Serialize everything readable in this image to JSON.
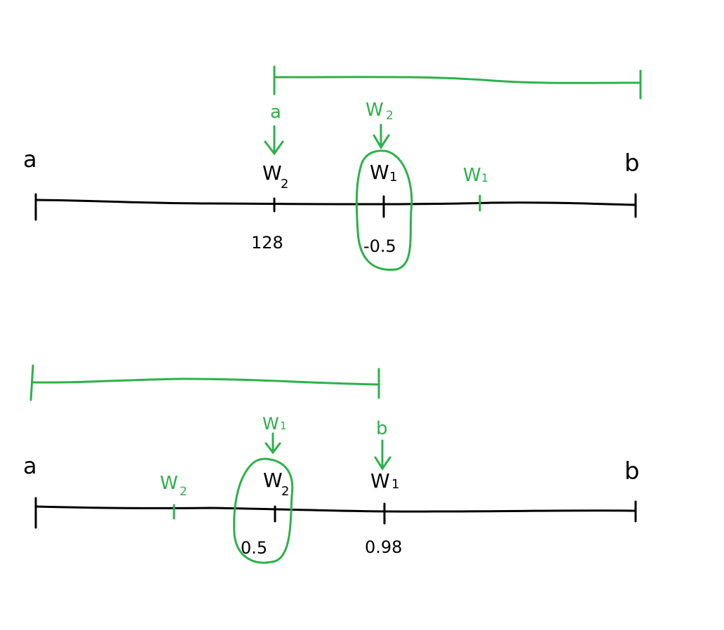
{
  "colors": {
    "ink": "#000000",
    "highlight": "#2db14a",
    "background": "#ffffff"
  },
  "diagrams": [
    {
      "id": "top",
      "left_label": "a",
      "right_label": "b",
      "points": [
        {
          "name": "W2",
          "base": "W",
          "sub": "2",
          "value": "128",
          "color": "ink"
        },
        {
          "name": "W1",
          "base": "W",
          "sub": "1",
          "value": "-0.5",
          "color": "ink",
          "circled": true
        },
        {
          "name": "W1",
          "base": "W",
          "sub": "1",
          "value": "",
          "color": "highlight"
        }
      ],
      "arrows": [
        {
          "label": "a"
        },
        {
          "label": "W2",
          "base": "W",
          "sub": "2"
        }
      ]
    },
    {
      "id": "bottom",
      "left_label": "a",
      "right_label": "b",
      "points": [
        {
          "name": "W2",
          "base": "W",
          "sub": "2",
          "value": "",
          "color": "highlight"
        },
        {
          "name": "W2",
          "base": "W",
          "sub": "2",
          "value": "0.5",
          "color": "ink",
          "circled": true
        },
        {
          "name": "W1",
          "base": "W",
          "sub": "1",
          "value": "0.98",
          "color": "ink"
        }
      ],
      "arrows": [
        {
          "label": "W1",
          "base": "W",
          "sub": "1"
        },
        {
          "label": "b"
        }
      ]
    }
  ]
}
